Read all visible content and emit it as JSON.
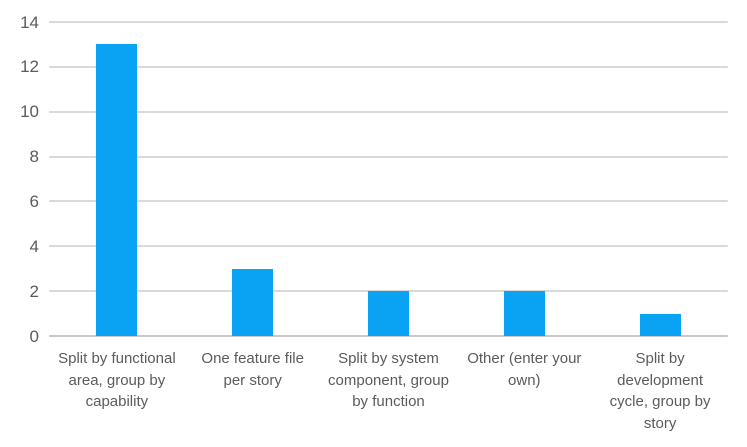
{
  "chart_data": {
    "type": "bar",
    "title": "",
    "xlabel": "",
    "ylabel": "",
    "categories": [
      "Split by functional area, group by capability",
      "One feature file per story",
      "Split by system component, group by function",
      "Other (enter your own)",
      "Split by development cycle, group by story"
    ],
    "values": [
      13,
      3,
      2,
      2,
      1
    ],
    "ylim": [
      0,
      14
    ],
    "ytick_step": 2,
    "ytick_labels": [
      "0",
      "2",
      "4",
      "6",
      "8",
      "10",
      "12",
      "14"
    ],
    "grid": true,
    "legend": false,
    "colors": {
      "bar": "#0AA2F2",
      "gridline": "#D9D9D9",
      "baseline": "#C9C9C9",
      "axis_text": "#5B5B5B"
    }
  }
}
